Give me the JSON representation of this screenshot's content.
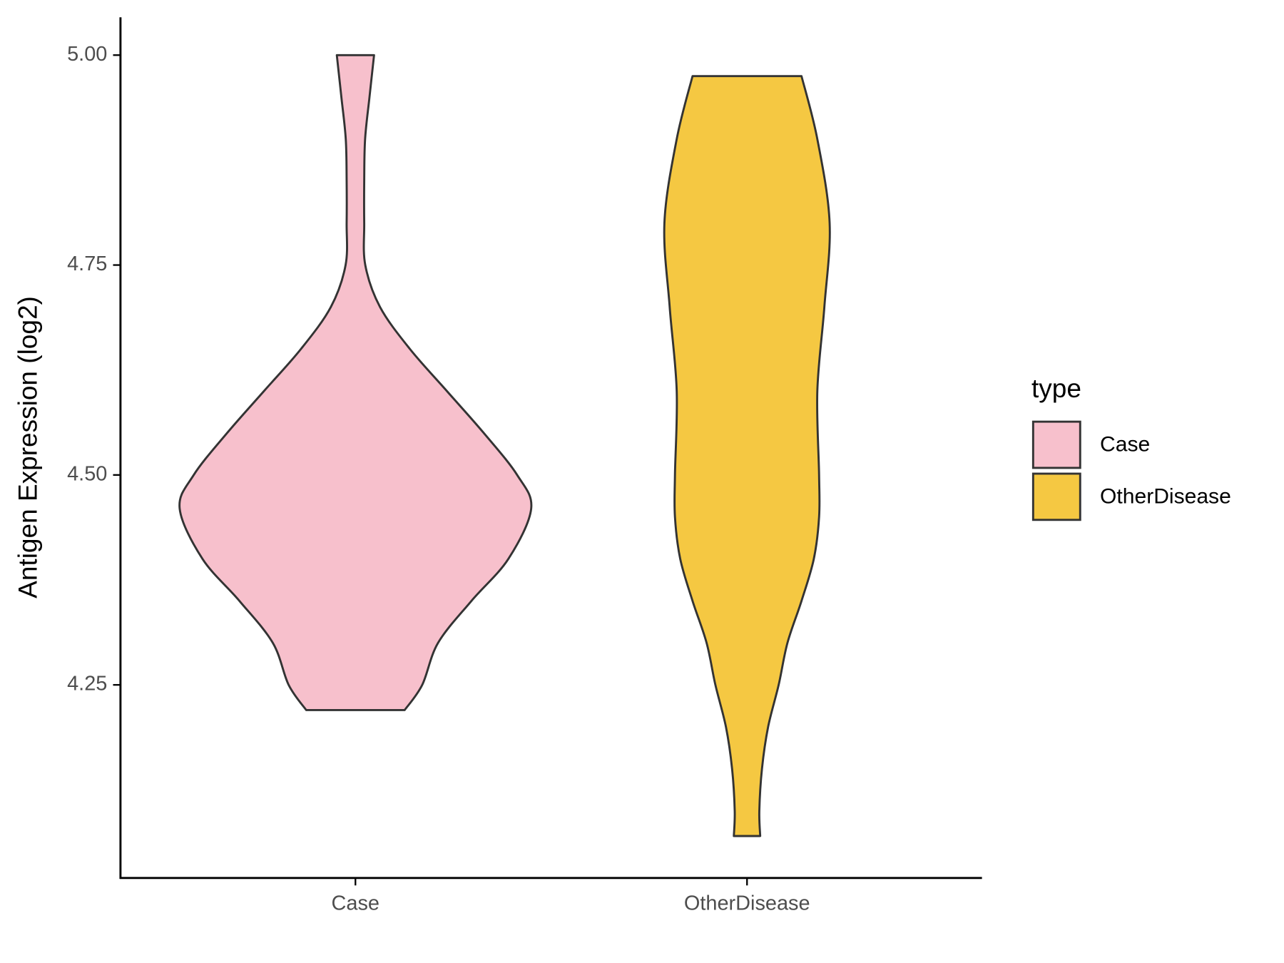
{
  "chart_data": {
    "type": "violin",
    "y_label": "Antigen Expression (log2)",
    "categories": [
      "Case",
      "OtherDisease"
    ],
    "series": [
      {
        "name": "Case",
        "color": "#f7c0cc",
        "y": [
          5.0,
          4.95,
          4.9,
          4.85,
          4.8,
          4.75,
          4.7,
          4.65,
          4.6,
          4.55,
          4.5,
          4.46,
          4.4,
          4.35,
          4.3,
          4.25,
          4.22
        ],
        "density": [
          0.106,
          0.08,
          0.055,
          0.05,
          0.05,
          0.056,
          0.14,
          0.31,
          0.52,
          0.73,
          0.92,
          1.0,
          0.87,
          0.66,
          0.47,
          0.38,
          0.28
        ]
      },
      {
        "name": "OtherDisease",
        "color": "#f5c842",
        "y": [
          4.975,
          4.9,
          4.8,
          4.7,
          4.6,
          4.5,
          4.45,
          4.4,
          4.35,
          4.3,
          4.25,
          4.2,
          4.15,
          4.1,
          4.07
        ],
        "density": [
          0.31,
          0.4,
          0.47,
          0.44,
          0.4,
          0.41,
          0.41,
          0.38,
          0.31,
          0.23,
          0.18,
          0.12,
          0.085,
          0.07,
          0.075
        ]
      }
    ],
    "ylim": [
      4.02,
      5.045
    ],
    "yticks": [
      4.25,
      {
        "value": 4.5,
        "label": "4.50"
      },
      4.75,
      {
        "value": 5,
        "label": "5.00"
      }
    ],
    "legend_title": "type",
    "legend_position": "right"
  }
}
